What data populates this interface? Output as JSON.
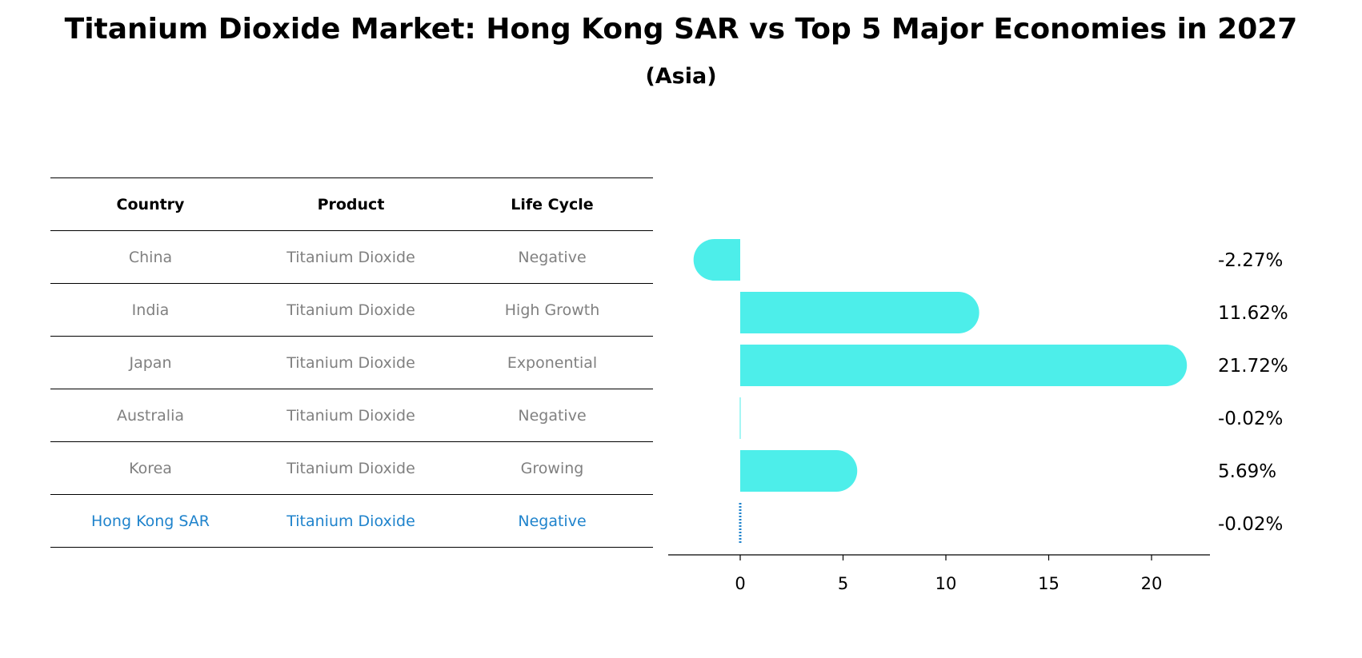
{
  "title": "Titanium Dioxide Market: Hong Kong SAR vs Top 5 Major Economies in 2027",
  "subtitle": "(Asia)",
  "table": {
    "headers": [
      "Country",
      "Product",
      "Life Cycle"
    ],
    "rows": [
      {
        "country": "China",
        "product": "Titanium Dioxide",
        "life_cycle": "Negative"
      },
      {
        "country": "India",
        "product": "Titanium Dioxide",
        "life_cycle": "High Growth"
      },
      {
        "country": "Japan",
        "product": "Titanium Dioxide",
        "life_cycle": "Exponential"
      },
      {
        "country": "Australia",
        "product": "Titanium Dioxide",
        "life_cycle": "Negative"
      },
      {
        "country": "Korea",
        "product": "Titanium Dioxide",
        "life_cycle": "Growing"
      },
      {
        "country": "Hong Kong SAR",
        "product": "Titanium Dioxide",
        "life_cycle": "Negative"
      }
    ],
    "highlight_row": "Hong Kong SAR"
  },
  "colors": {
    "bar": "#4deeea",
    "highlight": "#1f83cc",
    "muted_text": "#808080"
  },
  "chart_data": {
    "type": "bar",
    "orientation": "horizontal",
    "categories": [
      "China",
      "India",
      "Japan",
      "Australia",
      "Korea",
      "Hong Kong SAR"
    ],
    "values": [
      -2.27,
      11.62,
      21.72,
      -0.02,
      5.69,
      -0.02
    ],
    "value_labels": [
      "-2.27%",
      "11.62%",
      "21.72%",
      "-0.02%",
      "5.69%",
      "-0.02%"
    ],
    "xlim": [
      -3.5,
      23
    ],
    "xticks": [
      0,
      5,
      10,
      15,
      20
    ],
    "grid": false
  }
}
